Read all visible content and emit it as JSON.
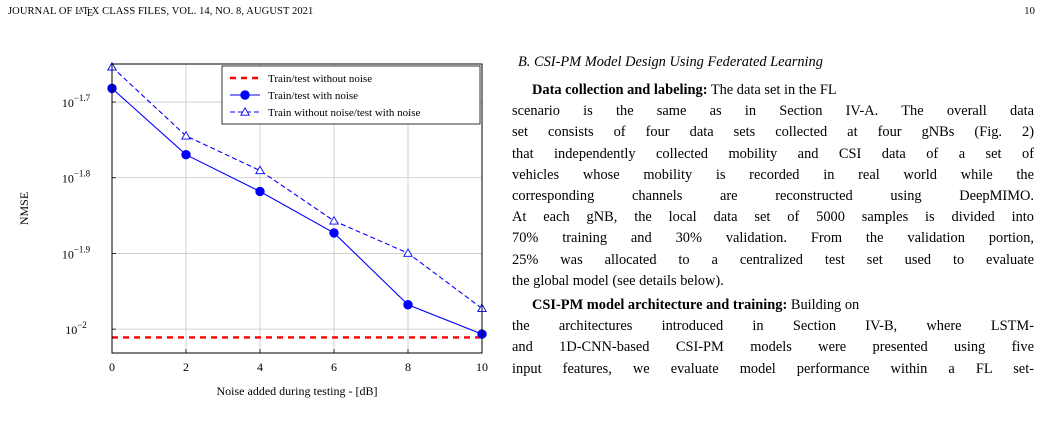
{
  "header": {
    "journal_prefix": "JOURNAL OF ",
    "latex_L": "L",
    "latex_A": "A",
    "latex_T": "T",
    "latex_E": "E",
    "latex_X": "X",
    "journal_suffix": " CLASS FILES, VOL. 14, NO. 8, AUGUST 2021",
    "page_number": "10"
  },
  "figure": {
    "ylabel": "NMSE",
    "xlabel": "Noise added during testing - [dB]"
  },
  "chart_data": {
    "type": "line",
    "x": [
      0,
      2,
      4,
      6,
      8,
      10
    ],
    "xlim": [
      0,
      10
    ],
    "xticks": [
      0,
      2,
      4,
      6,
      8,
      10
    ],
    "y_scale": "log",
    "ylim": [
      0.0093,
      0.0224
    ],
    "yticks": [
      {
        "value": 0.0199526,
        "base": "10",
        "exponent": "−1.7"
      },
      {
        "value": 0.0158489,
        "base": "10",
        "exponent": "−1.8"
      },
      {
        "value": 0.0125893,
        "base": "10",
        "exponent": "−1.9"
      },
      {
        "value": 0.01,
        "base": "10",
        "exponent": "−2"
      }
    ],
    "xlabel": "Noise added during testing - [dB]",
    "ylabel": "NMSE",
    "grid": true,
    "legend_position": "top-right",
    "series": [
      {
        "name": "Train/test without noise",
        "color": "#ff0000",
        "style": "dashed",
        "marker": "none",
        "values": [
          0.00975,
          0.00975,
          0.00975,
          0.00975,
          0.00975,
          0.00975
        ]
      },
      {
        "name": "Train/test with noise",
        "color": "#0000ff",
        "style": "solid",
        "marker": "circle",
        "values": [
          0.0208,
          0.017,
          0.0152,
          0.0134,
          0.01077,
          0.00985
        ]
      },
      {
        "name": "Train without noise/test with noise",
        "color": "#0000ff",
        "style": "dashed",
        "marker": "triangle",
        "values": [
          0.0222,
          0.018,
          0.0162,
          0.0139,
          0.0126,
          0.01065
        ]
      }
    ]
  },
  "text": {
    "section_heading": "B. CSI-PM Model Design Using Federated Learning",
    "p1_lead": "Data collection and labeling:",
    "p1_lines": [
      " The data set in the FL",
      "scenario is the same as in Section IV-A. The overall data",
      "set consists of four data sets collected at four gNBs (Fig. 2)",
      "that independently collected mobility and CSI data of a set of",
      "vehicles whose mobility is recorded in real world while the",
      "corresponding channels are reconstructed using DeepMIMO.",
      "At each gNB, the local data set of 5000 samples is divided into",
      "70% training and 30% validation. From the validation portion,",
      "25% was allocated to a centralized test set used to evaluate",
      "the global model (see details below)."
    ],
    "p2_lead": "CSI-PM model architecture and training:",
    "p2_lines": [
      " Building on",
      "the architectures introduced in Section IV-B, where LSTM-",
      "and 1D-CNN-based CSI-PM models were presented using five",
      "input features, we evaluate model performance within a FL set-"
    ]
  }
}
